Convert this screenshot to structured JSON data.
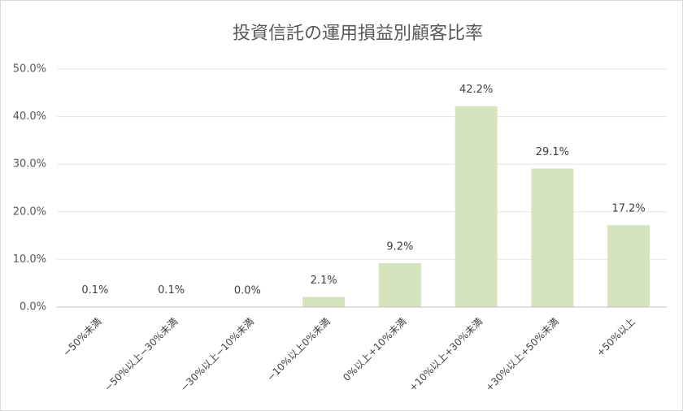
{
  "chart_data": {
    "type": "bar",
    "title": "投資信託の運用損益別顧客比率",
    "categories": [
      "−50%未満",
      "−50%以上−30%未満",
      "−30%以上−10%未満",
      "−10%以上0%未満",
      "0%以上+10%未満",
      "+10%以上+30%未満",
      "+30%以上+50%未満",
      "+50%以上"
    ],
    "values": [
      0.1,
      0.1,
      0.0,
      2.1,
      9.2,
      42.2,
      29.1,
      17.2
    ],
    "value_labels": [
      "0.1%",
      "0.1%",
      "0.0%",
      "2.1%",
      "9.2%",
      "42.2%",
      "29.1%",
      "17.2%"
    ],
    "color": "#d6e4bd",
    "ylim": [
      0,
      50
    ],
    "yticks": [
      {
        "value": 0,
        "label": "0.0%"
      },
      {
        "value": 10,
        "label": "10.0%"
      },
      {
        "value": 20,
        "label": "20.0%"
      },
      {
        "value": 30,
        "label": "30.0%"
      },
      {
        "value": 40,
        "label": "40.0%"
      },
      {
        "value": 50,
        "label": "50.0%"
      }
    ],
    "grid": true
  }
}
